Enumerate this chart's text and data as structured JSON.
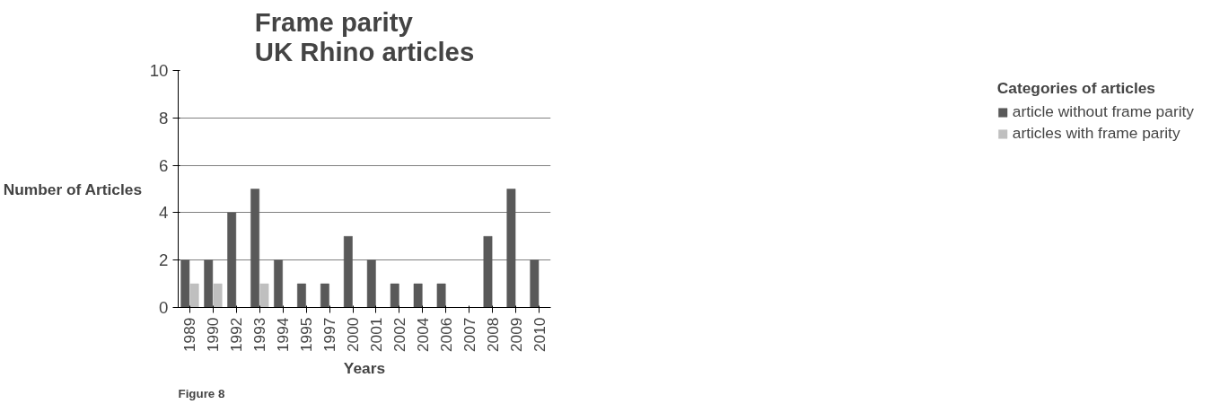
{
  "chart_data": {
    "type": "bar",
    "title": "Frame parity\nUK Rhino articles",
    "xlabel": "Years",
    "ylabel": "Number of Articles",
    "legend_title": "Categories of articles",
    "categories": [
      "1989",
      "1990",
      "1992",
      "1993",
      "1994",
      "1995",
      "1997",
      "2000",
      "2001",
      "2002",
      "2004",
      "2006",
      "2007",
      "2008",
      "2009",
      "2010"
    ],
    "series": [
      {
        "name": "article without frame parity",
        "color": "#595959",
        "values": [
          2,
          2,
          4,
          5,
          2,
          1,
          1,
          3,
          2,
          1,
          1,
          1,
          0,
          3,
          5,
          2
        ]
      },
      {
        "name": "articles with frame parity",
        "color": "#bfbfbf",
        "values": [
          1,
          1,
          0,
          1,
          0,
          0,
          0,
          0,
          0,
          0,
          0,
          0,
          0,
          0,
          0,
          0
        ]
      }
    ],
    "ylim": [
      0,
      10
    ],
    "yticks": [
      0,
      2,
      4,
      6,
      8,
      10
    ],
    "grid": "y",
    "legend": "right",
    "annotations": [
      "Figure 8"
    ]
  }
}
